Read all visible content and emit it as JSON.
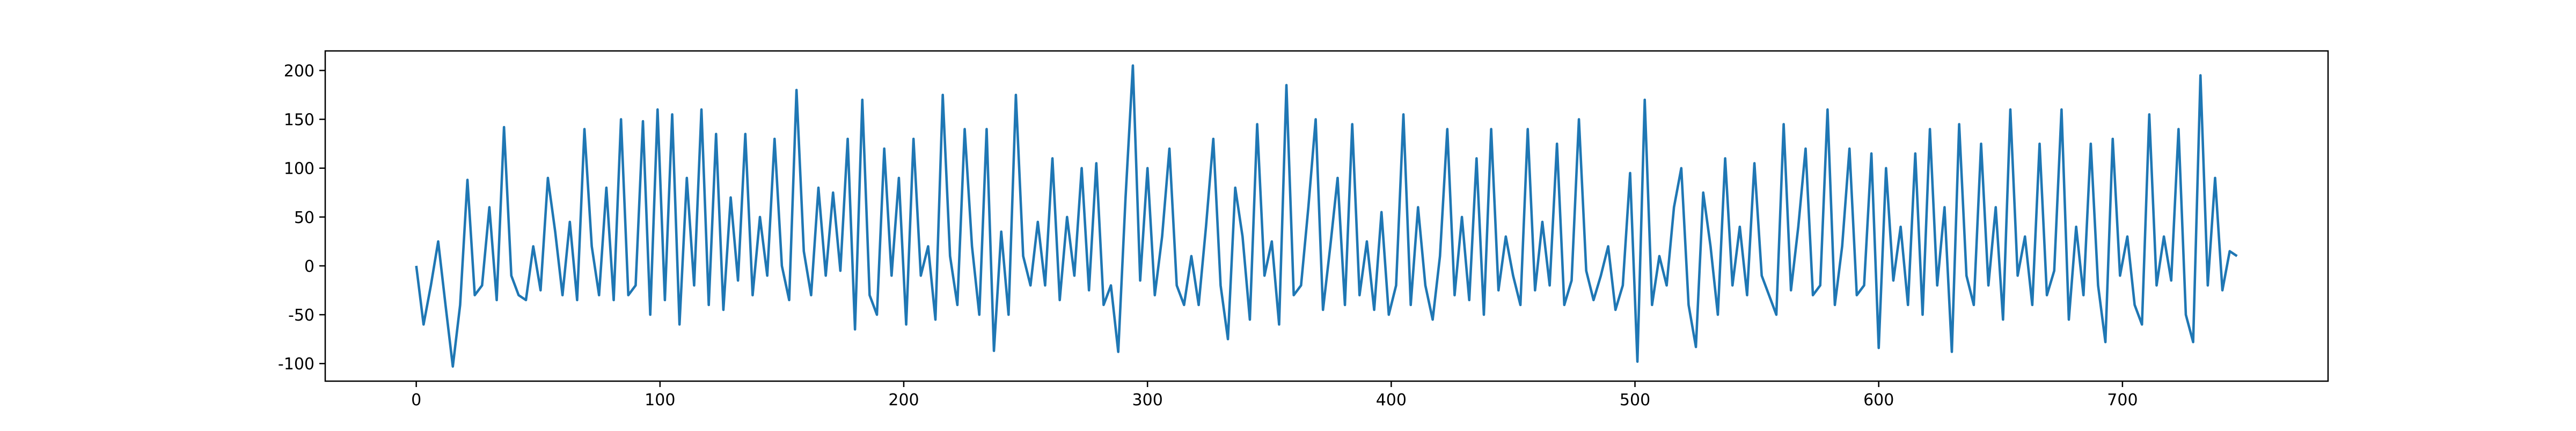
{
  "chart_data": {
    "type": "line",
    "x": [
      0,
      3,
      6,
      9,
      12,
      15,
      18,
      21,
      24,
      27,
      30,
      33,
      36,
      39,
      42,
      45,
      48,
      51,
      54,
      57,
      60,
      63,
      66,
      69,
      72,
      75,
      78,
      81,
      84,
      87,
      90,
      93,
      96,
      99,
      102,
      105,
      108,
      111,
      114,
      117,
      120,
      123,
      126,
      129,
      132,
      135,
      138,
      141,
      144,
      147,
      150,
      153,
      156,
      159,
      162,
      165,
      168,
      171,
      174,
      177,
      180,
      183,
      186,
      189,
      192,
      195,
      198,
      201,
      204,
      207,
      210,
      213,
      216,
      219,
      222,
      225,
      228,
      231,
      234,
      237,
      240,
      243,
      246,
      249,
      252,
      255,
      258,
      261,
      264,
      267,
      270,
      273,
      276,
      279,
      282,
      285,
      288,
      291,
      294,
      297,
      300,
      303,
      306,
      309,
      312,
      315,
      318,
      321,
      324,
      327,
      330,
      333,
      336,
      339,
      342,
      345,
      348,
      351,
      354,
      357,
      360,
      363,
      366,
      369,
      372,
      375,
      378,
      381,
      384,
      387,
      390,
      393,
      396,
      399,
      402,
      405,
      408,
      411,
      414,
      417,
      420,
      423,
      426,
      429,
      432,
      435,
      438,
      441,
      444,
      447,
      450,
      453,
      456,
      459,
      462,
      465,
      468,
      471,
      474,
      477,
      480,
      483,
      486,
      489,
      492,
      495,
      498,
      501,
      504,
      507,
      510,
      513,
      516,
      519,
      522,
      525,
      528,
      531,
      534,
      537,
      540,
      543,
      546,
      549,
      552,
      555,
      558,
      561,
      564,
      567,
      570,
      573,
      576,
      579,
      582,
      585,
      588,
      591,
      594,
      597,
      600,
      603,
      606,
      609,
      612,
      615,
      618,
      621,
      624,
      627,
      630,
      633,
      636,
      639,
      642,
      645,
      648,
      651,
      654,
      657,
      660,
      663,
      666,
      669,
      672,
      675,
      678,
      681,
      684,
      687,
      690,
      693,
      696,
      699,
      702,
      705,
      708,
      711,
      714,
      717,
      720,
      723,
      726,
      729,
      732,
      735,
      738,
      741,
      744,
      747
    ],
    "series": [
      {
        "color": "#1f77b4",
        "values": [
          0,
          -60,
          -20,
          25,
          -40,
          -103,
          -40,
          88,
          -30,
          -20,
          60,
          -35,
          142,
          -10,
          -30,
          -35,
          20,
          -25,
          90,
          35,
          -30,
          45,
          -35,
          140,
          20,
          -30,
          80,
          -35,
          150,
          -30,
          -20,
          148,
          -50,
          160,
          -35,
          155,
          -60,
          90,
          -20,
          160,
          -40,
          135,
          -45,
          70,
          -15,
          135,
          -30,
          50,
          -10,
          130,
          0,
          -35,
          180,
          15,
          -30,
          80,
          -10,
          75,
          -5,
          130,
          -65,
          170,
          -30,
          -50,
          120,
          -10,
          90,
          -60,
          130,
          -10,
          20,
          -55,
          175,
          10,
          -40,
          140,
          20,
          -50,
          140,
          -87,
          35,
          -50,
          175,
          10,
          -20,
          45,
          -20,
          110,
          -35,
          50,
          -10,
          100,
          -25,
          105,
          -40,
          -20,
          -88,
          70,
          205,
          -15,
          100,
          -30,
          30,
          120,
          -20,
          -40,
          10,
          -40,
          40,
          130,
          -20,
          -75,
          80,
          30,
          -55,
          145,
          -10,
          25,
          -60,
          185,
          -30,
          -20,
          60,
          150,
          -45,
          20,
          90,
          -40,
          145,
          -30,
          25,
          -45,
          55,
          -50,
          -20,
          155,
          -40,
          60,
          -20,
          -55,
          10,
          140,
          -30,
          50,
          -35,
          110,
          -50,
          140,
          -25,
          30,
          -10,
          -40,
          140,
          -25,
          45,
          -20,
          125,
          -40,
          -15,
          150,
          -5,
          -35,
          -10,
          20,
          -45,
          -20,
          95,
          -98,
          170,
          -40,
          10,
          -20,
          60,
          100,
          -40,
          -83,
          75,
          20,
          -50,
          110,
          -20,
          40,
          -30,
          105,
          -10,
          -30,
          -50,
          145,
          -25,
          40,
          120,
          -30,
          -20,
          160,
          -40,
          20,
          120,
          -30,
          -20,
          115,
          -84,
          100,
          -15,
          40,
          -40,
          115,
          -50,
          140,
          -20,
          60,
          -88,
          145,
          -10,
          -40,
          125,
          -20,
          60,
          -55,
          160,
          -10,
          30,
          -40,
          125,
          -30,
          -5,
          160,
          -55,
          40,
          -30,
          125,
          -20,
          -78,
          130,
          -10,
          30,
          -40,
          -60,
          155,
          -20,
          30,
          -15,
          140,
          -50,
          -78,
          195,
          -20,
          90,
          -25,
          15,
          10
        ]
      }
    ],
    "xlim": [
      -37.35,
      784.35
    ],
    "ylim": [
      -118,
      220
    ],
    "xticks": [
      0,
      100,
      200,
      300,
      400,
      500,
      600,
      700
    ],
    "yticks": [
      -100,
      -50,
      0,
      50,
      100,
      150,
      200
    ]
  }
}
